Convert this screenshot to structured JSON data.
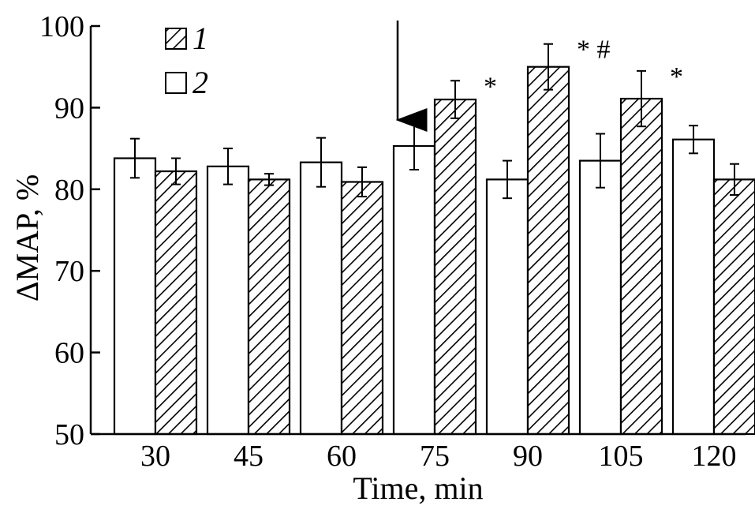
{
  "chart_data": {
    "type": "bar",
    "title": "",
    "xlabel": "Time, min",
    "ylabel": "ΔMAP, %",
    "ylim": [
      50,
      100
    ],
    "yticks": [
      50,
      60,
      70,
      80,
      90,
      100
    ],
    "categories": [
      "30",
      "45",
      "60",
      "75",
      "90",
      "105",
      "120"
    ],
    "series": [
      {
        "name": "2",
        "fill": "open",
        "values": [
          83.8,
          82.8,
          83.3,
          85.3,
          81.2,
          83.5,
          86.1
        ],
        "errors": [
          2.4,
          2.2,
          3.0,
          2.9,
          2.3,
          3.3,
          1.7
        ]
      },
      {
        "name": "1",
        "fill": "hatched",
        "values": [
          82.2,
          81.2,
          80.9,
          91.0,
          95.0,
          91.1,
          81.2
        ],
        "errors": [
          1.6,
          0.7,
          1.8,
          2.3,
          2.8,
          3.4,
          1.9
        ]
      }
    ],
    "legend": {
      "position": "top-left",
      "entries": [
        {
          "label": "1",
          "series": "1"
        },
        {
          "label": "2",
          "series": "2"
        }
      ]
    },
    "annotations": [
      {
        "text": "*",
        "category": "75",
        "series": "1"
      },
      {
        "text": "* #",
        "category": "90",
        "series": "1"
      },
      {
        "text": "*",
        "category": "105",
        "series": "1"
      }
    ],
    "arrow": {
      "between": [
        "60",
        "75"
      ],
      "direction": "down"
    }
  },
  "colors": {
    "ink": "#000000",
    "background": "#ffffff"
  }
}
